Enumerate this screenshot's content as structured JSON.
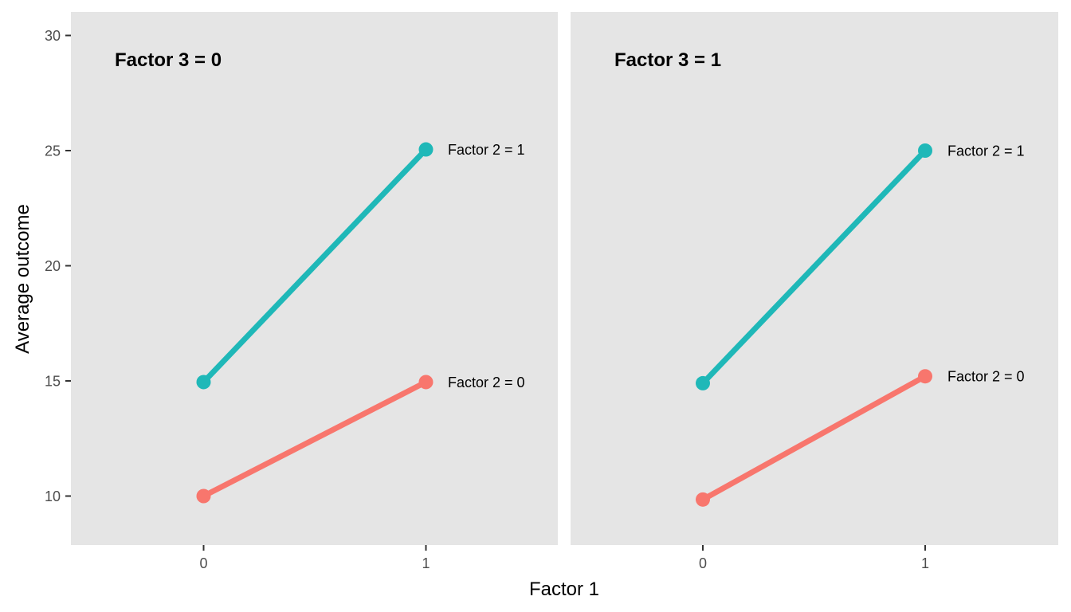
{
  "chart_data": {
    "type": "line",
    "xlabel": "Factor 1",
    "ylabel": "Average outcome",
    "x_categories": [
      "0",
      "1"
    ],
    "y_ticks": [
      10,
      15,
      20,
      25,
      30
    ],
    "ylim": [
      8,
      30.5
    ],
    "grid": false,
    "colors": {
      "factor2_0": "#F8766D",
      "factor2_1": "#1FB8B8",
      "panel_bg": "#E5E5E5"
    },
    "panels": [
      {
        "title": "Factor 3 = 0",
        "series": [
          {
            "name": "Factor 2 = 1",
            "color_key": "factor2_1",
            "values": [
              14.95,
              25.05
            ]
          },
          {
            "name": "Factor 2 = 0",
            "color_key": "factor2_0",
            "values": [
              10.0,
              14.95
            ]
          }
        ]
      },
      {
        "title": "Factor 3 = 1",
        "series": [
          {
            "name": "Factor 2 = 1",
            "color_key": "factor2_1",
            "values": [
              14.9,
              25.0
            ]
          },
          {
            "name": "Factor 2 = 0",
            "color_key": "factor2_0",
            "values": [
              9.85,
              15.2
            ]
          }
        ]
      }
    ]
  }
}
